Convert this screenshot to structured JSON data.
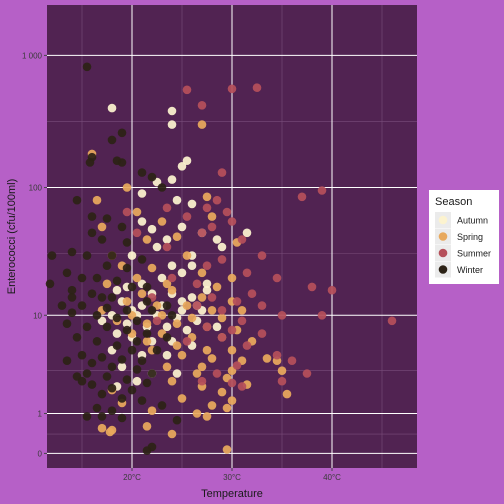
{
  "chart_data": {
    "type": "scatter",
    "xlabel": "Temperature",
    "ylabel": "Enterococci (cfu/100ml)",
    "x_scale": "linear",
    "y_scale": "log10 (pseudo, zero shown)",
    "xlim": [
      11.5,
      48.5
    ],
    "x_ticks": [
      {
        "value": 20,
        "label": "20°C"
      },
      {
        "value": 30,
        "label": "30°C"
      },
      {
        "value": 40,
        "label": "40°C"
      }
    ],
    "y_ticks": [
      {
        "value": 0,
        "label": "0"
      },
      {
        "value": 1,
        "label": "1"
      },
      {
        "value": 10,
        "label": "10"
      },
      {
        "value": 100,
        "label": "100"
      },
      {
        "value": 1000,
        "label": "1 000"
      }
    ],
    "grid": true,
    "legend": {
      "title": "Season",
      "position": "right"
    },
    "series": [
      {
        "name": "Autumn",
        "color": "#fcf3cf",
        "points": [
          [
            18.0,
            400
          ],
          [
            22.5,
            110
          ],
          [
            24.0,
            380
          ],
          [
            24.0,
            300
          ],
          [
            25.5,
            160
          ],
          [
            25.0,
            145
          ],
          [
            24.0,
            115
          ],
          [
            21.0,
            90
          ],
          [
            24.5,
            80
          ],
          [
            26.0,
            75
          ],
          [
            22.0,
            48
          ],
          [
            25.0,
            50
          ],
          [
            27.0,
            45
          ],
          [
            23.5,
            40
          ],
          [
            20.0,
            30
          ],
          [
            26.0,
            30
          ],
          [
            29.0,
            35
          ],
          [
            31.5,
            45
          ],
          [
            26.0,
            25
          ],
          [
            25.0,
            22
          ],
          [
            23.0,
            20
          ],
          [
            21.0,
            18
          ],
          [
            19.5,
            17
          ],
          [
            18.5,
            16
          ],
          [
            22.0,
            15
          ],
          [
            24.0,
            15
          ],
          [
            26.0,
            14
          ],
          [
            27.5,
            16
          ],
          [
            19.0,
            13
          ],
          [
            21.0,
            12
          ],
          [
            23.0,
            12
          ],
          [
            25.0,
            11
          ],
          [
            27.0,
            11
          ],
          [
            18.0,
            10
          ],
          [
            20.5,
            10
          ],
          [
            22.5,
            10
          ],
          [
            24.5,
            9.5
          ],
          [
            26.5,
            9
          ],
          [
            17.0,
            9
          ],
          [
            19.5,
            8.5
          ],
          [
            21.5,
            8
          ],
          [
            23.5,
            8
          ],
          [
            25.5,
            7.5
          ],
          [
            28.5,
            8
          ],
          [
            18.5,
            7
          ],
          [
            20.0,
            6.5
          ],
          [
            22.0,
            6
          ],
          [
            24.0,
            6
          ],
          [
            26.0,
            5.5
          ],
          [
            18.0,
            5
          ],
          [
            21.0,
            4.5
          ],
          [
            23.5,
            4.5
          ],
          [
            19.0,
            3.5
          ],
          [
            22.0,
            3
          ],
          [
            24.5,
            3
          ],
          [
            20.5,
            2.5
          ],
          [
            18.5,
            2.2
          ],
          [
            25.0,
            13
          ],
          [
            26.5,
            12
          ],
          [
            20.0,
            11
          ],
          [
            24.0,
            25
          ],
          [
            27.5,
            18
          ],
          [
            22.5,
            35
          ],
          [
            28.5,
            40
          ],
          [
            21.0,
            55
          ]
        ]
      },
      {
        "name": "Spring",
        "color": "#e8a95d",
        "points": [
          [
            16.0,
            180
          ],
          [
            19.5,
            100
          ],
          [
            27.0,
            300
          ],
          [
            27.5,
            85
          ],
          [
            16.5,
            80
          ],
          [
            20.5,
            65
          ],
          [
            23.0,
            55
          ],
          [
            28.0,
            60
          ],
          [
            17.0,
            50
          ],
          [
            21.5,
            40
          ],
          [
            24.5,
            42
          ],
          [
            30.5,
            38
          ],
          [
            18.0,
            30
          ],
          [
            25.5,
            30
          ],
          [
            19.0,
            25
          ],
          [
            22.0,
            24
          ],
          [
            27.0,
            22
          ],
          [
            30.0,
            20
          ],
          [
            20.5,
            20
          ],
          [
            23.5,
            18
          ],
          [
            28.5,
            17
          ],
          [
            17.5,
            18
          ],
          [
            21.0,
            15
          ],
          [
            24.0,
            16
          ],
          [
            27.0,
            14
          ],
          [
            30.0,
            13
          ],
          [
            19.5,
            13
          ],
          [
            22.5,
            12
          ],
          [
            25.5,
            12
          ],
          [
            28.0,
            11
          ],
          [
            31.0,
            11
          ],
          [
            17.0,
            11
          ],
          [
            20.0,
            10
          ],
          [
            23.0,
            10
          ],
          [
            26.0,
            9.5
          ],
          [
            29.0,
            9.5
          ],
          [
            18.5,
            9
          ],
          [
            21.5,
            8.5
          ],
          [
            24.5,
            8.5
          ],
          [
            27.5,
            8
          ],
          [
            30.5,
            7.5
          ],
          [
            20.0,
            7
          ],
          [
            23.0,
            7
          ],
          [
            26.0,
            6.5
          ],
          [
            29.0,
            6.5
          ],
          [
            32.0,
            6
          ],
          [
            21.5,
            6
          ],
          [
            24.5,
            5.5
          ],
          [
            27.5,
            5
          ],
          [
            30.0,
            5
          ],
          [
            33.5,
            4.2
          ],
          [
            34.5,
            4
          ],
          [
            35.0,
            3.2
          ],
          [
            22.0,
            5
          ],
          [
            25.0,
            4.5
          ],
          [
            28.0,
            4.2
          ],
          [
            31.0,
            4
          ],
          [
            27.0,
            3.5
          ],
          [
            30.0,
            3.2
          ],
          [
            23.5,
            3.5
          ],
          [
            26.5,
            3
          ],
          [
            29.5,
            2.7
          ],
          [
            24.0,
            2.5
          ],
          [
            27.0,
            2.2
          ],
          [
            31.5,
            2.3
          ],
          [
            29.0,
            1.9
          ],
          [
            18.0,
            2
          ],
          [
            35.5,
            1.8
          ],
          [
            25.0,
            1.6
          ],
          [
            19.0,
            1.4
          ],
          [
            28.0,
            1.3
          ],
          [
            30.0,
            1.5
          ],
          [
            29.5,
            1.2
          ],
          [
            22.0,
            1.1
          ],
          [
            27.5,
            0.9
          ],
          [
            26.5,
            1.0
          ],
          [
            17.0,
            0.55
          ],
          [
            21.5,
            0.6
          ],
          [
            18.0,
            0.5
          ],
          [
            17.8,
            0.45
          ],
          [
            24.0,
            0.4
          ],
          [
            29.5,
            0.07
          ]
        ]
      },
      {
        "name": "Summer",
        "color": "#b5505a",
        "points": [
          [
            25.5,
            550
          ],
          [
            32.5,
            570
          ],
          [
            30.0,
            560
          ],
          [
            27.0,
            420
          ],
          [
            29.0,
            130
          ],
          [
            39.0,
            95
          ],
          [
            37.0,
            85
          ],
          [
            28.5,
            80
          ],
          [
            27.5,
            70
          ],
          [
            29.5,
            65
          ],
          [
            25.5,
            60
          ],
          [
            28.0,
            50
          ],
          [
            30.0,
            55
          ],
          [
            27.0,
            45
          ],
          [
            31.0,
            40
          ],
          [
            33.0,
            30
          ],
          [
            29.0,
            28
          ],
          [
            27.5,
            25
          ],
          [
            31.5,
            22
          ],
          [
            34.5,
            20
          ],
          [
            38.0,
            17
          ],
          [
            40.0,
            16
          ],
          [
            32.0,
            15
          ],
          [
            28.0,
            14
          ],
          [
            30.5,
            13
          ],
          [
            26.5,
            12
          ],
          [
            33.0,
            12
          ],
          [
            29.0,
            11
          ],
          [
            35.0,
            10
          ],
          [
            39.0,
            10
          ],
          [
            46.0,
            9
          ],
          [
            31.0,
            9
          ],
          [
            27.5,
            8
          ],
          [
            30.0,
            7.5
          ],
          [
            33.0,
            7
          ],
          [
            29.0,
            6.5
          ],
          [
            25.5,
            6
          ],
          [
            31.5,
            5.5
          ],
          [
            34.5,
            4.5
          ],
          [
            36.0,
            4
          ],
          [
            30.5,
            3.6
          ],
          [
            37.5,
            3
          ],
          [
            28.5,
            3
          ],
          [
            27.0,
            2.5
          ],
          [
            30.0,
            2.4
          ],
          [
            35.0,
            2.5
          ],
          [
            31.0,
            2.2
          ],
          [
            19.5,
            65
          ],
          [
            23.5,
            70
          ],
          [
            20.5,
            45
          ],
          [
            24.0,
            20
          ],
          [
            26.5,
            18
          ],
          [
            22.5,
            9
          ],
          [
            22.0,
            14
          ],
          [
            23.5,
            35
          ]
        ]
      },
      {
        "name": "Winter",
        "color": "#2c2216",
        "points": [
          [
            15.5,
            820
          ],
          [
            19.0,
            260
          ],
          [
            18.0,
            230
          ],
          [
            16.0,
            170
          ],
          [
            15.8,
            155
          ],
          [
            19.0,
            155
          ],
          [
            18.5,
            160
          ],
          [
            21.0,
            130
          ],
          [
            22.0,
            120
          ],
          [
            23.0,
            100
          ],
          [
            14.5,
            80
          ],
          [
            16.0,
            60
          ],
          [
            17.5,
            58
          ],
          [
            19.0,
            50
          ],
          [
            16.0,
            45
          ],
          [
            17.0,
            40
          ],
          [
            19.5,
            38
          ],
          [
            14.0,
            32
          ],
          [
            15.5,
            30
          ],
          [
            18.0,
            30
          ],
          [
            12.0,
            30
          ],
          [
            21.0,
            28
          ],
          [
            17.5,
            25
          ],
          [
            19.5,
            24
          ],
          [
            13.5,
            22
          ],
          [
            15.0,
            20
          ],
          [
            16.5,
            20
          ],
          [
            18.5,
            19
          ],
          [
            11.8,
            18
          ],
          [
            20.0,
            17
          ],
          [
            14.0,
            16
          ],
          [
            16.0,
            15
          ],
          [
            18.0,
            14
          ],
          [
            21.5,
            13
          ],
          [
            13.0,
            12
          ],
          [
            15.0,
            12
          ],
          [
            17.5,
            11.5
          ],
          [
            19.5,
            11
          ],
          [
            22.0,
            11
          ],
          [
            14.0,
            10.5
          ],
          [
            16.5,
            10
          ],
          [
            18.5,
            9.5
          ],
          [
            20.5,
            9
          ],
          [
            13.5,
            8.5
          ],
          [
            15.5,
            8
          ],
          [
            17.5,
            8
          ],
          [
            19.5,
            7.5
          ],
          [
            21.5,
            7
          ],
          [
            23.5,
            6.5
          ],
          [
            14.5,
            6.5
          ],
          [
            16.5,
            6
          ],
          [
            18.5,
            5.5
          ],
          [
            20.0,
            5
          ],
          [
            22.5,
            5
          ],
          [
            15.0,
            4.5
          ],
          [
            17.0,
            4.3
          ],
          [
            19.0,
            4.1
          ],
          [
            21.0,
            4
          ],
          [
            16.0,
            3.8
          ],
          [
            18.0,
            3.5
          ],
          [
            20.5,
            3.3
          ],
          [
            22.0,
            3
          ],
          [
            15.5,
            3
          ],
          [
            17.5,
            2.8
          ],
          [
            19.5,
            2.6
          ],
          [
            21.5,
            2.4
          ],
          [
            16.0,
            2.3
          ],
          [
            18.0,
            2.1
          ],
          [
            20.0,
            2
          ],
          [
            14.5,
            2.8
          ],
          [
            15.0,
            2.5
          ],
          [
            17.0,
            1.8
          ],
          [
            19.0,
            1.6
          ],
          [
            21.0,
            1.5
          ],
          [
            23.0,
            1.3
          ],
          [
            16.5,
            1.2
          ],
          [
            18.0,
            1.1
          ],
          [
            15.5,
            0.9
          ],
          [
            17.0,
            0.9
          ],
          [
            19.0,
            0.85
          ],
          [
            24.5,
            0.78
          ],
          [
            22.0,
            0.12
          ],
          [
            21.5,
            0.05
          ],
          [
            20.5,
            6
          ],
          [
            23.5,
            12
          ],
          [
            14.0,
            14
          ],
          [
            21.5,
            17
          ],
          [
            24.0,
            10
          ],
          [
            17.0,
            14
          ],
          [
            13.5,
            4
          ]
        ]
      }
    ]
  }
}
